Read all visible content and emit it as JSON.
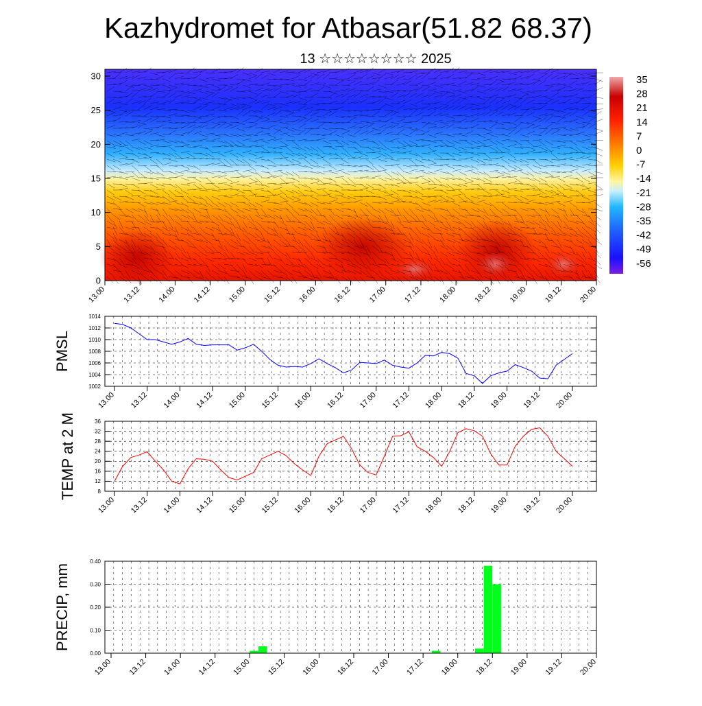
{
  "header": {
    "title": "Kazhydromet for Atbasar(51.82 68.37)",
    "subtitle": "13 ☆☆☆☆☆☆☆☆ 2025"
  },
  "time_ticks": [
    "13.00",
    "13.12",
    "14.00",
    "14.12",
    "15.00",
    "15.12",
    "16.00",
    "16.12",
    "17.00",
    "17.12",
    "18.00",
    "18.12",
    "19.00",
    "19.12",
    "20.00"
  ],
  "chart_data": [
    {
      "id": "cross-section",
      "type": "heatmap",
      "description_of_fields": "time-height cross-section of temperature (°C) with wind barbs",
      "yticks": [
        0,
        5,
        10,
        15,
        20,
        25,
        30
      ],
      "ylim": [
        0,
        31
      ],
      "colorbar": {
        "labels": [
          "35",
          "28",
          "21",
          "14",
          "7",
          "0",
          "-7",
          "-14",
          "-21",
          "-28",
          "-35",
          "-42",
          "-49",
          "-56"
        ],
        "range": [
          -60,
          38
        ]
      },
      "temperature_profile_by_level": [
        [
          0,
          30
        ],
        [
          3,
          28
        ],
        [
          6,
          25
        ],
        [
          9,
          18
        ],
        [
          12,
          8
        ],
        [
          15,
          -7
        ],
        [
          18,
          -25
        ],
        [
          21,
          -40
        ],
        [
          24,
          -52
        ],
        [
          27,
          -55
        ],
        [
          30,
          -50
        ]
      ],
      "wind_barbs": true
    },
    {
      "id": "pmsl",
      "type": "line",
      "ylabel": "PMSL",
      "ylim": [
        1002,
        1014
      ],
      "yticks": [
        "1002",
        "1004",
        "1006",
        "1008",
        "1010",
        "1012",
        "1014"
      ],
      "color": "#0000ff",
      "x": [
        0,
        3,
        6,
        9,
        12,
        15,
        18,
        21,
        24,
        27,
        30,
        33,
        36,
        39,
        42,
        45,
        48,
        51,
        54,
        57,
        60,
        63,
        66,
        69,
        72,
        75,
        78,
        81,
        84,
        87,
        90,
        93,
        96,
        99,
        102,
        105,
        108,
        111,
        114,
        117,
        120,
        123,
        126,
        129,
        132,
        135,
        138,
        141,
        144,
        147,
        150,
        153,
        156,
        159,
        162,
        165,
        168
      ],
      "values": [
        1012.8,
        1012.6,
        1012.0,
        1011.0,
        1010.0,
        1010.0,
        1009.6,
        1009.2,
        1009.6,
        1010.2,
        1009.2,
        1009.0,
        1009.1,
        1009.1,
        1009.1,
        1008.2,
        1008.6,
        1009.2,
        1008.0,
        1006.6,
        1005.6,
        1005.3,
        1005.4,
        1005.3,
        1005.9,
        1006.7,
        1005.9,
        1005.2,
        1004.3,
        1004.8,
        1006.1,
        1006.0,
        1005.9,
        1006.5,
        1005.6,
        1005.3,
        1005.1,
        1006.0,
        1007.3,
        1007.2,
        1007.8,
        1007.6,
        1006.8,
        1004.2,
        1003.8,
        1002.5,
        1003.8,
        1004.3,
        1004.6,
        1005.7,
        1005.2,
        1004.6,
        1003.4,
        1003.3,
        1005.6,
        1006.6,
        1007.6
      ]
    },
    {
      "id": "temp2m",
      "type": "line",
      "ylabel": "TEMP at 2 M",
      "ylim": [
        8,
        36
      ],
      "yticks": [
        "8",
        "12",
        "16",
        "20",
        "24",
        "28",
        "32",
        "36"
      ],
      "color": "#ff0000",
      "x": [
        0,
        3,
        6,
        9,
        12,
        15,
        18,
        21,
        24,
        27,
        30,
        33,
        36,
        39,
        42,
        45,
        48,
        51,
        54,
        57,
        60,
        63,
        66,
        69,
        72,
        75,
        78,
        81,
        84,
        87,
        90,
        93,
        96,
        99,
        102,
        105,
        108,
        111,
        114,
        117,
        120,
        123,
        126,
        129,
        132,
        135,
        138,
        141,
        144,
        147,
        150,
        153,
        156,
        159,
        162,
        165,
        168
      ],
      "values": [
        12,
        18,
        21.5,
        22.5,
        23.8,
        20,
        16.5,
        12,
        11,
        17,
        21,
        20.8,
        20,
        16.5,
        13.5,
        12.5,
        14,
        15.5,
        21,
        22.5,
        24,
        22.2,
        19,
        16.5,
        14.3,
        22,
        27,
        28.5,
        30,
        25,
        18.5,
        15.5,
        14.5,
        22,
        30,
        30.2,
        31.8,
        25.8,
        24,
        21.5,
        18,
        24,
        31.5,
        33,
        32.2,
        30,
        23,
        18.5,
        18.5,
        26,
        30,
        32.8,
        33.4,
        30,
        24,
        21,
        18
      ]
    },
    {
      "id": "precip",
      "type": "bar",
      "ylabel": "PRECIP, mm",
      "ylim": [
        0,
        0.4
      ],
      "yticks": [
        "0.00",
        "0.10",
        "0.20",
        "0.30",
        "0.40"
      ],
      "color": "#00ff1a",
      "bar_width_hours": 3,
      "bars": [
        {
          "x": 48,
          "value": 0.01
        },
        {
          "x": 51,
          "value": 0.03
        },
        {
          "x": 111,
          "value": 0.01
        },
        {
          "x": 126,
          "value": 0.02
        },
        {
          "x": 129,
          "value": 0.38
        },
        {
          "x": 132,
          "value": 0.3
        }
      ]
    }
  ]
}
